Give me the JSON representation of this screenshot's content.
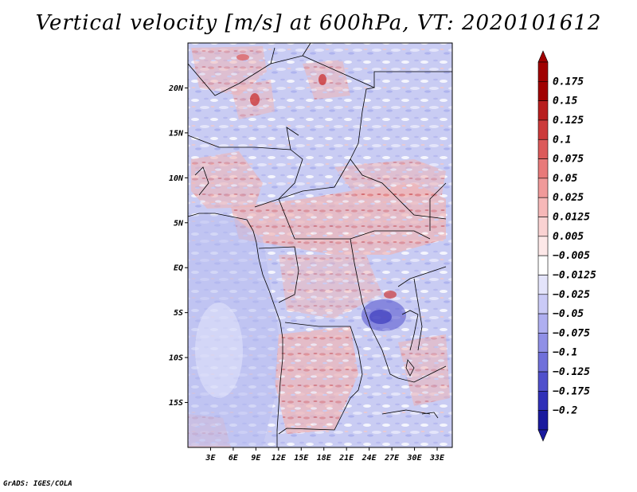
{
  "title": "Vertical velocity [m/s] at 600hPa, VT: 2020101612",
  "footer": "GrADS: IGES/COLA",
  "map": {
    "lon_range": [
      0,
      35
    ],
    "lat_range": [
      -20,
      25
    ],
    "lat_ticks": [
      {
        "value": 20,
        "label": "20N"
      },
      {
        "value": 15,
        "label": "15N"
      },
      {
        "value": 10,
        "label": "10N"
      },
      {
        "value": 5,
        "label": "5N"
      },
      {
        "value": 0,
        "label": "EQ"
      },
      {
        "value": -5,
        "label": "5S"
      },
      {
        "value": -10,
        "label": "10S"
      },
      {
        "value": -15,
        "label": "15S"
      }
    ],
    "lon_ticks": [
      {
        "value": 3,
        "label": "3E"
      },
      {
        "value": 6,
        "label": "6E"
      },
      {
        "value": 9,
        "label": "9E"
      },
      {
        "value": 12,
        "label": "12E"
      },
      {
        "value": 15,
        "label": "15E"
      },
      {
        "value": 18,
        "label": "18E"
      },
      {
        "value": 21,
        "label": "21E"
      },
      {
        "value": 24,
        "label": "24E"
      },
      {
        "value": 27,
        "label": "27E"
      },
      {
        "value": 30,
        "label": "30E"
      },
      {
        "value": 33,
        "label": "33E"
      }
    ]
  },
  "colorbar": {
    "levels": [
      {
        "label": "0.175",
        "color": "#a00000"
      },
      {
        "label": "0.15",
        "color": "#b81e1e"
      },
      {
        "label": "0.125",
        "color": "#cc3a3a"
      },
      {
        "label": "0.1",
        "color": "#dc5a5a"
      },
      {
        "label": "0.075",
        "color": "#e87a7a"
      },
      {
        "label": "0.05",
        "color": "#f09a9a"
      },
      {
        "label": "0.025",
        "color": "#f6b8b8"
      },
      {
        "label": "0.0125",
        "color": "#fad2d2"
      },
      {
        "label": "0.005",
        "color": "#fde8e8"
      },
      {
        "label": "−0.005",
        "color": "#ffffff"
      },
      {
        "label": "−0.0125",
        "color": "#e4e4fb"
      },
      {
        "label": "−0.025",
        "color": "#cacaf6"
      },
      {
        "label": "−0.05",
        "color": "#afaff0"
      },
      {
        "label": "−0.075",
        "color": "#9090e6"
      },
      {
        "label": "−0.1",
        "color": "#7070da"
      },
      {
        "label": "−0.125",
        "color": "#5050cc"
      },
      {
        "label": "−0.175",
        "color": "#3030b8"
      },
      {
        "label": "−0.2",
        "color": "#1a1a9e"
      }
    ],
    "top_color": "#a00000",
    "bottom_color": "#1a1a9e"
  }
}
